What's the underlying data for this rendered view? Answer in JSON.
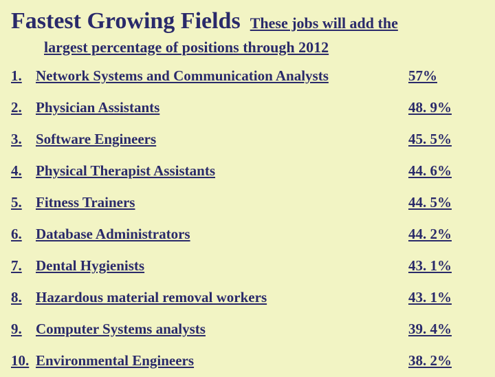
{
  "title": "Fastest Growing Fields",
  "subtitle_lead": "These jobs will add the",
  "subtitle_wrap": "largest percentage of positions through 2012",
  "colors": {
    "background": "#f2f4c4",
    "text": "#2a2a6a"
  },
  "table": {
    "type": "table",
    "rows": [
      {
        "rank": "1.",
        "field": "Network Systems and Communication Analysts",
        "pct": "57%"
      },
      {
        "rank": "2.",
        "field": "Physician Assistants",
        "pct": "48. 9%"
      },
      {
        "rank": "3.",
        "field": "Software Engineers",
        "pct": "45. 5%"
      },
      {
        "rank": "4.",
        "field": "Physical Therapist Assistants",
        "pct": "44. 6%"
      },
      {
        "rank": "5.",
        "field": "Fitness Trainers",
        "pct": "44. 5%"
      },
      {
        "rank": "6.",
        "field": "Database Administrators",
        "pct": "44. 2%"
      },
      {
        "rank": "7.",
        "field": "Dental Hygienists",
        "pct": "43. 1%"
      },
      {
        "rank": "8.",
        "field": "Hazardous material removal workers",
        "pct": "43. 1%"
      },
      {
        "rank": "9.",
        "field": "Computer Systems analysts",
        "pct": "39. 4%"
      },
      {
        "rank": "10.",
        "field": "Environmental Engineers",
        "pct": "38. 2%"
      }
    ]
  }
}
